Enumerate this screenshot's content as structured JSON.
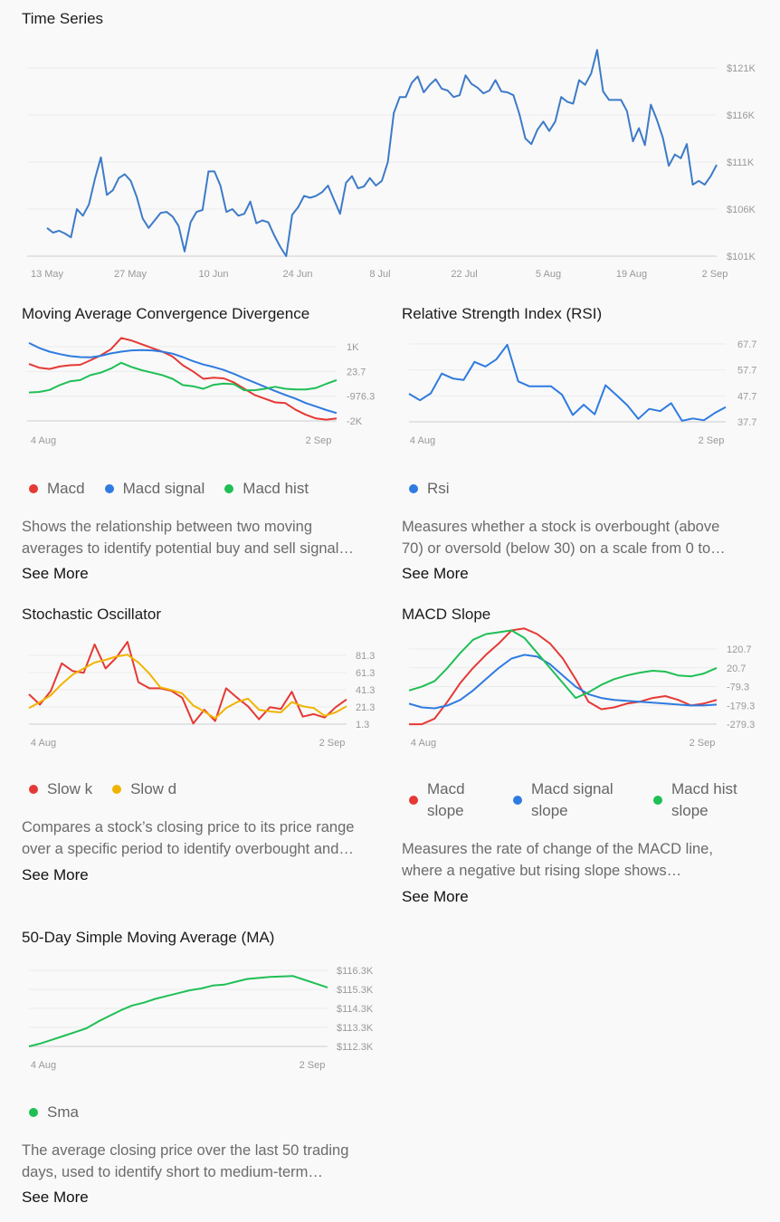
{
  "colors": {
    "red": "#e53935",
    "blue": "#2f7be0",
    "green": "#1fbf55",
    "yellow": "#f0b400",
    "line_blue": "#3d7bc8"
  },
  "panels": {
    "ts": {
      "title": "Time Series"
    },
    "macd": {
      "title": "Moving Average Convergence Divergence",
      "legend": [
        {
          "label": "Macd",
          "color": "#e53935"
        },
        {
          "label": "Macd signal",
          "color": "#2f7be0"
        },
        {
          "label": "Macd hist",
          "color": "#1fbf55"
        }
      ],
      "desc_1": "Shows the relationship between two moving",
      "desc_2": "averages to identify potential buy and sell signal…",
      "see_more": "See More"
    },
    "rsi": {
      "title": "Relative Strength Index (RSI)",
      "legend": [
        {
          "label": "Rsi",
          "color": "#2f7be0"
        }
      ],
      "desc_1": "Measures whether a stock is overbought (above",
      "desc_2": "70) or oversold (below 30) on a scale from 0 to…",
      "see_more": "See More"
    },
    "stoch": {
      "title": "Stochastic Oscillator",
      "legend": [
        {
          "label": "Slow k",
          "color": "#e53935"
        },
        {
          "label": "Slow d",
          "color": "#f0b400"
        }
      ],
      "desc_1": "Compares a stock’s closing price to its price range",
      "desc_2": "over a specific period to identify overbought and…",
      "see_more": "See More"
    },
    "slope": {
      "title": "MACD Slope",
      "legend": [
        {
          "label1": "Macd",
          "label2": "slope",
          "color": "#e53935"
        },
        {
          "label1": "Macd signal",
          "label2": "slope",
          "color": "#2f7be0"
        },
        {
          "label1": "Macd hist",
          "label2": "slope",
          "color": "#1fbf55"
        }
      ],
      "desc_1": "Measures the rate of change of the MACD line,",
      "desc_2": "where a negative but rising slope shows…",
      "see_more": "See More"
    },
    "sma": {
      "title": "50-Day Simple Moving Average (MA)",
      "legend": [
        {
          "label": "Sma",
          "color": "#1fbf55"
        }
      ],
      "desc_1": "The average closing price over the last 50 trading",
      "desc_2": "days, used to identify short to medium-term…",
      "see_more": "See More"
    }
  },
  "chart_data": [
    {
      "id": "ts",
      "type": "line",
      "title": "Time Series",
      "x_ticks": [
        "13 May",
        "27 May",
        "10 Jun",
        "24 Jun",
        "8 Jul",
        "22 Jul",
        "5 Aug",
        "19 Aug",
        "2 Sep"
      ],
      "y_ticks": [
        "$101K",
        "$106K",
        "$111K",
        "$116K",
        "$121K"
      ],
      "ylim": [
        101000,
        124000
      ],
      "series": [
        {
          "name": "Price",
          "color": "#3d7bc8",
          "values": [
            104000,
            103500,
            103700,
            103400,
            103000,
            106000,
            105300,
            106500,
            109200,
            111500,
            107500,
            108000,
            109300,
            109700,
            109000,
            107300,
            105000,
            104000,
            104800,
            105600,
            105700,
            105200,
            104200,
            101500,
            104600,
            105700,
            105900,
            110000,
            110000,
            108500,
            105700,
            106000,
            105300,
            105500,
            106800,
            104500,
            104800,
            104600,
            103200,
            102000,
            101000,
            105400,
            106200,
            107400,
            107200,
            107400,
            107800,
            108500,
            107000,
            105500,
            108800,
            109500,
            108200,
            108400,
            109300,
            108500,
            109000,
            111000,
            116200,
            117900,
            117900,
            119400,
            120100,
            118400,
            119200,
            119800,
            118800,
            118600,
            117900,
            118100,
            120200,
            119300,
            118900,
            118300,
            118600,
            119700,
            118500,
            118400,
            118100,
            116100,
            113500,
            112900,
            114400,
            115300,
            114300,
            115300,
            117900,
            117400,
            117200,
            119700,
            119200,
            120400,
            122900,
            118500,
            117600,
            117600,
            117600,
            116400,
            113200,
            114600,
            112800,
            117100,
            115500,
            113600,
            110600,
            111800,
            111400,
            112900,
            108600,
            109000,
            108600,
            109500,
            110700
          ]
        }
      ]
    },
    {
      "id": "macd",
      "type": "line",
      "title": "Moving Average Convergence Divergence",
      "x_ticks": [
        "4 Aug",
        "2 Sep"
      ],
      "y_ticks": [
        "-2K",
        "-976.3",
        "23.7",
        "1K"
      ],
      "ylim": [
        -2000,
        1400
      ],
      "series": [
        {
          "name": "Macd",
          "color": "#e53935",
          "values": [
            300,
            150,
            100,
            200,
            250,
            270,
            450,
            650,
            900,
            1350,
            1250,
            1100,
            950,
            800,
            600,
            250,
            0,
            -300,
            -250,
            -280,
            -450,
            -700,
            -950,
            -1100,
            -1250,
            -1280,
            -1550,
            -1750,
            -1900,
            -1950,
            -1900
          ]
        },
        {
          "name": "Macd signal",
          "color": "#2f7be0",
          "values": [
            1150,
            950,
            800,
            700,
            620,
            580,
            570,
            630,
            730,
            800,
            850,
            860,
            850,
            800,
            720,
            580,
            420,
            280,
            180,
            60,
            -100,
            -280,
            -450,
            -620,
            -790,
            -950,
            -1100,
            -1280,
            -1420,
            -1560,
            -1680
          ]
        },
        {
          "name": "Macd hist",
          "color": "#1fbf55",
          "values": [
            -850,
            -830,
            -750,
            -550,
            -400,
            -350,
            -150,
            -50,
            120,
            350,
            180,
            50,
            -50,
            -150,
            -300,
            -550,
            -600,
            -700,
            -540,
            -490,
            -520,
            -760,
            -760,
            -700,
            -620,
            -700,
            -730,
            -730,
            -670,
            -500,
            -350
          ]
        }
      ]
    },
    {
      "id": "rsi",
      "type": "line",
      "title": "Relative Strength Index (RSI)",
      "x_ticks": [
        "4 Aug",
        "2 Sep"
      ],
      "y_ticks": [
        "37.7",
        "47.7",
        "57.7",
        "67.7"
      ],
      "ylim": [
        37.7,
        67.7
      ],
      "series": [
        {
          "name": "Rsi",
          "color": "#2f7be0",
          "values": [
            48.5,
            46,
            48.7,
            56.3,
            54.4,
            53.8,
            60.8,
            59,
            61.8,
            67.4,
            53.3,
            51.4,
            51.4,
            51.4,
            48.2,
            40.3,
            44.3,
            40.6,
            51.8,
            48,
            44,
            38.8,
            42.7,
            41.8,
            44.9,
            38.1,
            39,
            38.3,
            41.1,
            43.4
          ]
        }
      ]
    },
    {
      "id": "stoch",
      "type": "line",
      "title": "Stochastic Oscillator",
      "x_ticks": [
        "4 Aug",
        "2 Sep"
      ],
      "y_ticks": [
        "1.3",
        "21.3",
        "41.3",
        "61.3",
        "81.3"
      ],
      "ylim": [
        1.3,
        101
      ],
      "series": [
        {
          "name": "Slow k",
          "color": "#e53935",
          "values": [
            36,
            24,
            40,
            72,
            63,
            61,
            94,
            66,
            79,
            97,
            50,
            43,
            43,
            40,
            32,
            2,
            18,
            5,
            43,
            32,
            22,
            7,
            21,
            19,
            39,
            10,
            13,
            9,
            21,
            30
          ]
        },
        {
          "name": "Slow d",
          "color": "#f0b400",
          "values": [
            20,
            27,
            35,
            48,
            59,
            66,
            73,
            76,
            80,
            82,
            73,
            60,
            44,
            41,
            37,
            23,
            16,
            8,
            20,
            27,
            31,
            18,
            16,
            15,
            27,
            22,
            20,
            11,
            15,
            22
          ]
        }
      ]
    },
    {
      "id": "slope",
      "type": "line",
      "title": "MACD Slope",
      "x_ticks": [
        "4 Aug",
        "2 Sep"
      ],
      "y_ticks": [
        "-279.3",
        "-179.3",
        "-79.3",
        "20.7",
        "120.7"
      ],
      "ylim": [
        -279.3,
        250
      ],
      "series": [
        {
          "name": "Macd slope",
          "color": "#e53935",
          "values": [
            -280,
            -280,
            -250,
            -160,
            -60,
            20,
            90,
            150,
            220,
            230,
            200,
            150,
            70,
            -40,
            -160,
            -200,
            -190,
            -170,
            -160,
            -140,
            -130,
            -150,
            -180,
            -170,
            -150
          ]
        },
        {
          "name": "Macd signal slope",
          "color": "#2f7be0",
          "values": [
            -170,
            -190,
            -195,
            -180,
            -150,
            -100,
            -40,
            20,
            70,
            90,
            80,
            40,
            -20,
            -80,
            -120,
            -140,
            -150,
            -155,
            -160,
            -165,
            -170,
            -175,
            -180,
            -180,
            -175
          ]
        },
        {
          "name": "Macd hist slope",
          "color": "#1fbf55",
          "values": [
            -100,
            -80,
            -50,
            20,
            100,
            170,
            200,
            210,
            220,
            180,
            100,
            20,
            -60,
            -140,
            -110,
            -70,
            -40,
            -20,
            -5,
            5,
            0,
            -20,
            -25,
            -10,
            20
          ]
        }
      ]
    },
    {
      "id": "sma",
      "type": "line",
      "title": "50-Day Simple Moving Average (MA)",
      "x_ticks": [
        "4 Aug",
        "2 Sep"
      ],
      "y_ticks": [
        "$112.3K",
        "$113.3K",
        "$114.3K",
        "$115.3K",
        "$116.3K"
      ],
      "ylim": [
        112300,
        116300
      ],
      "series": [
        {
          "name": "Sma",
          "color": "#1fbf55",
          "values": [
            112300,
            112450,
            112650,
            112850,
            113050,
            113250,
            113600,
            113900,
            114200,
            114450,
            114600,
            114800,
            114950,
            115100,
            115250,
            115350,
            115500,
            115550,
            115700,
            115850,
            115900,
            115950,
            115980,
            116000,
            115800,
            115600,
            115400
          ]
        }
      ]
    }
  ]
}
